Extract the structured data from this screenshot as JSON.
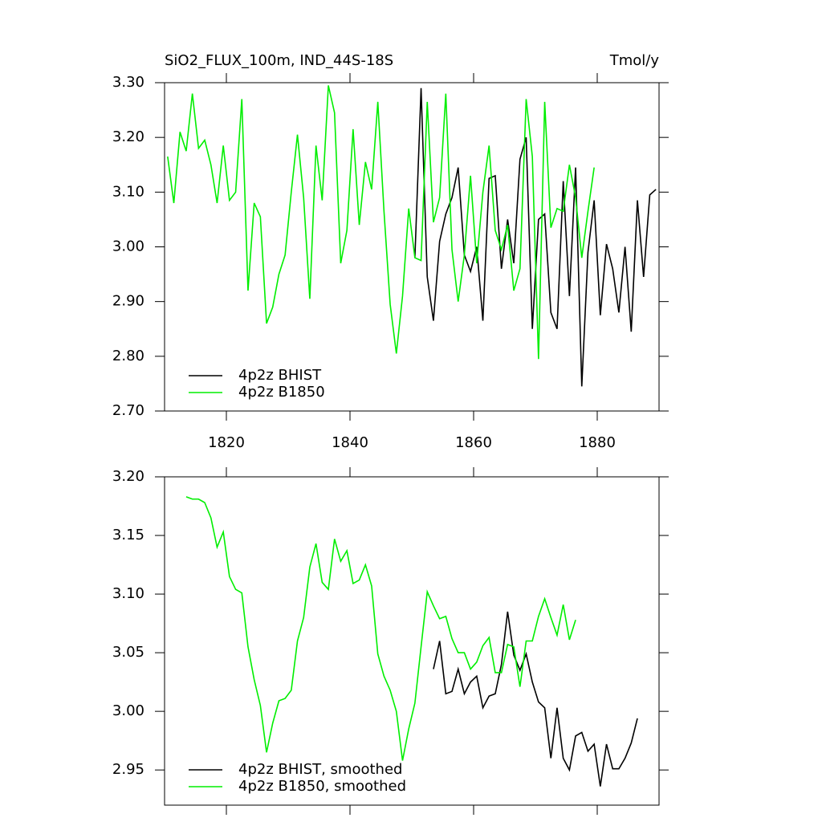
{
  "chart_data": [
    {
      "type": "line",
      "title": "SiO2_FLUX_100m, IND_44S-18S",
      "units": "Tmol/y",
      "xlim": [
        1810,
        1890
      ],
      "xticks": [
        1820,
        1840,
        1860,
        1880
      ],
      "ylim": [
        2.7,
        3.3
      ],
      "yticks": [
        {
          "value": 2.7,
          "label": "2.70"
        },
        {
          "value": 2.8,
          "label": "2.80"
        },
        {
          "value": 2.9,
          "label": "2.90"
        },
        {
          "value": 3.0,
          "label": "3.00"
        },
        {
          "value": 3.1,
          "label": "3.10"
        },
        {
          "value": 3.2,
          "label": "3.20"
        },
        {
          "value": 3.3,
          "label": "3.30"
        }
      ],
      "series": [
        {
          "name": "4p2z BHIST",
          "color": "#000000",
          "x": [
            1850.5,
            1851.5,
            1852.5,
            1853.5,
            1854.5,
            1855.5,
            1856.5,
            1857.5,
            1858.5,
            1859.5,
            1860.5,
            1861.5,
            1862.5,
            1863.5,
            1864.5,
            1865.5,
            1866.5,
            1867.5,
            1868.5,
            1869.5,
            1870.5,
            1871.5,
            1872.5,
            1873.5,
            1874.5,
            1875.5,
            1876.5,
            1877.5,
            1878.5,
            1879.5,
            1880.5,
            1881.5,
            1882.5,
            1883.5,
            1884.5,
            1885.5,
            1886.5,
            1887.5,
            1888.5,
            1889.5
          ],
          "values": [
            2.98,
            3.29,
            2.945,
            2.865,
            3.01,
            3.06,
            3.09,
            3.145,
            2.985,
            2.955,
            3.0,
            2.865,
            3.125,
            3.13,
            2.96,
            3.05,
            2.97,
            3.16,
            3.2,
            2.85,
            3.05,
            3.06,
            2.88,
            2.85,
            3.12,
            2.91,
            3.145,
            2.745,
            2.99,
            3.085,
            2.875,
            3.005,
            2.96,
            2.88,
            3.0,
            2.845,
            3.085,
            2.945,
            3.095,
            3.105
          ]
        },
        {
          "name": "4p2z B1850",
          "color": "#00ee00",
          "x": [
            1810.5,
            1811.5,
            1812.5,
            1813.5,
            1814.5,
            1815.5,
            1816.5,
            1817.5,
            1818.5,
            1819.5,
            1820.5,
            1821.5,
            1822.5,
            1823.5,
            1824.5,
            1825.5,
            1826.5,
            1827.5,
            1828.5,
            1829.5,
            1830.5,
            1831.5,
            1832.5,
            1833.5,
            1834.5,
            1835.5,
            1836.5,
            1837.5,
            1838.5,
            1839.5,
            1840.5,
            1841.5,
            1842.5,
            1843.5,
            1844.5,
            1845.5,
            1846.5,
            1847.5,
            1848.5,
            1849.5,
            1850.5,
            1851.5,
            1852.5,
            1853.5,
            1854.5,
            1855.5,
            1856.5,
            1857.5,
            1858.5,
            1859.5,
            1860.5,
            1861.5,
            1862.5,
            1863.5,
            1864.5,
            1865.5,
            1866.5,
            1867.5,
            1868.5,
            1869.5,
            1870.5,
            1871.5,
            1872.5,
            1873.5,
            1874.5,
            1875.5,
            1876.5,
            1877.5,
            1878.5,
            1879.5
          ],
          "values": [
            3.165,
            3.08,
            3.21,
            3.175,
            3.28,
            3.18,
            3.195,
            3.15,
            3.08,
            3.185,
            3.085,
            3.1,
            3.27,
            2.92,
            3.08,
            3.055,
            2.86,
            2.89,
            2.95,
            2.985,
            3.1,
            3.205,
            3.09,
            2.905,
            3.185,
            3.085,
            3.295,
            3.245,
            2.97,
            3.03,
            3.215,
            3.04,
            3.155,
            3.105,
            3.265,
            3.065,
            2.895,
            2.805,
            2.91,
            3.07,
            2.98,
            2.975,
            3.265,
            3.045,
            3.09,
            3.28,
            2.995,
            2.9,
            2.985,
            3.13,
            2.97,
            3.1,
            3.185,
            3.03,
            2.995,
            3.04,
            2.92,
            2.96,
            3.27,
            3.165,
            2.795,
            3.265,
            3.035,
            3.07,
            3.065,
            3.15,
            3.09,
            2.98,
            3.065,
            3.145
          ]
        }
      ]
    },
    {
      "type": "line",
      "xlim": [
        1810,
        1890
      ],
      "xticks": [
        1820,
        1840,
        1860,
        1880
      ],
      "ylim": [
        2.92,
        3.2
      ],
      "yticks": [
        {
          "value": 2.95,
          "label": "2.95"
        },
        {
          "value": 3.0,
          "label": "3.00"
        },
        {
          "value": 3.05,
          "label": "3.05"
        },
        {
          "value": 3.1,
          "label": "3.10"
        },
        {
          "value": 3.15,
          "label": "3.15"
        },
        {
          "value": 3.2,
          "label": "3.20"
        }
      ],
      "series": [
        {
          "name": "4p2z BHIST, smoothed",
          "color": "#000000",
          "x": [
            1853.5,
            1854.5,
            1855.5,
            1856.5,
            1857.5,
            1858.5,
            1859.5,
            1860.5,
            1861.5,
            1862.5,
            1863.5,
            1864.5,
            1865.5,
            1866.5,
            1867.5,
            1868.5,
            1869.5,
            1870.5,
            1871.5,
            1872.5,
            1873.5,
            1874.5,
            1875.5,
            1876.5,
            1877.5,
            1878.5,
            1879.5,
            1880.5,
            1881.5,
            1882.5,
            1883.5,
            1884.5,
            1885.5,
            1886.5
          ],
          "values": [
            3.036,
            3.06,
            3.015,
            3.017,
            3.036,
            3.015,
            3.025,
            3.03,
            3.003,
            3.013,
            3.015,
            3.04,
            3.085,
            3.048,
            3.035,
            3.049,
            3.025,
            3.008,
            3.003,
            2.96,
            3.003,
            2.96,
            2.95,
            2.979,
            2.982,
            2.966,
            2.972,
            2.936,
            2.972,
            2.951,
            2.951,
            2.96,
            2.973,
            2.994
          ]
        },
        {
          "name": "4p2z B1850, smoothed",
          "color": "#00ee00",
          "x": [
            1813.5,
            1814.5,
            1815.5,
            1816.5,
            1817.5,
            1818.5,
            1819.5,
            1820.5,
            1821.5,
            1822.5,
            1823.5,
            1824.5,
            1825.5,
            1826.5,
            1827.5,
            1828.5,
            1829.5,
            1830.5,
            1831.5,
            1832.5,
            1833.5,
            1834.5,
            1835.5,
            1836.5,
            1837.5,
            1838.5,
            1839.5,
            1840.5,
            1841.5,
            1842.5,
            1843.5,
            1844.5,
            1845.5,
            1846.5,
            1847.5,
            1848.5,
            1849.5,
            1850.5,
            1851.5,
            1852.5,
            1853.5,
            1854.5,
            1855.5,
            1856.5,
            1857.5,
            1858.5,
            1859.5,
            1860.5,
            1861.5,
            1862.5,
            1863.5,
            1864.5,
            1865.5,
            1866.5,
            1867.5,
            1868.5,
            1869.5,
            1870.5,
            1871.5,
            1872.5,
            1873.5,
            1874.5,
            1875.5,
            1876.5
          ],
          "values": [
            3.183,
            3.181,
            3.181,
            3.178,
            3.165,
            3.14,
            3.153,
            3.115,
            3.104,
            3.101,
            3.055,
            3.027,
            3.005,
            2.965,
            2.99,
            3.009,
            3.011,
            3.018,
            3.06,
            3.08,
            3.123,
            3.143,
            3.11,
            3.104,
            3.147,
            3.128,
            3.137,
            3.109,
            3.112,
            3.125,
            3.107,
            3.049,
            3.03,
            3.018,
            3.0,
            2.958,
            2.985,
            3.007,
            3.055,
            3.102,
            3.09,
            3.079,
            3.081,
            3.062,
            3.05,
            3.05,
            3.036,
            3.042,
            3.056,
            3.063,
            3.033,
            3.033,
            3.057,
            3.055,
            3.021,
            3.06,
            3.06,
            3.081,
            3.096,
            3.08,
            3.065,
            3.091,
            3.061,
            3.078
          ]
        }
      ]
    }
  ]
}
